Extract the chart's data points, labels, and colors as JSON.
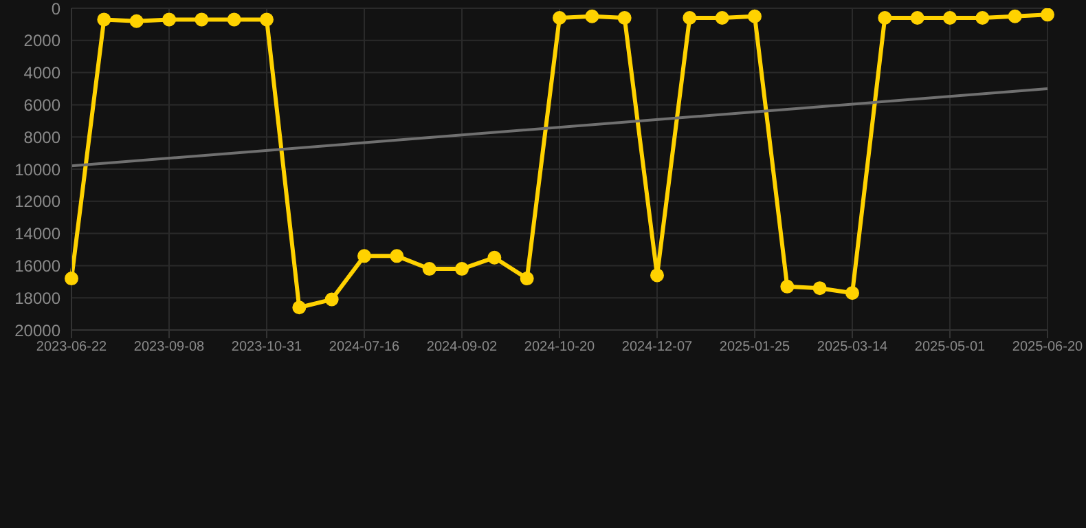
{
  "chart_data": {
    "type": "line",
    "categories": [
      "2023-06-22",
      null,
      null,
      "2023-09-08",
      null,
      null,
      "2023-10-31",
      null,
      null,
      "2024-07-16",
      null,
      null,
      "2024-09-02",
      null,
      null,
      "2024-10-20",
      null,
      null,
      "2024-12-07",
      null,
      null,
      "2025-01-25",
      null,
      null,
      "2025-03-14",
      null,
      null,
      "2025-05-01",
      null,
      null,
      "2025-06-20"
    ],
    "series": [
      {
        "color": "#ffd200",
        "values": [
          16800,
          700,
          800,
          700,
          700,
          700,
          700,
          18600,
          18100,
          15400,
          15400,
          16200,
          16200,
          15500,
          16800,
          600,
          500,
          600,
          16600,
          600,
          600,
          500,
          17300,
          17400,
          17700,
          600,
          600,
          600,
          600,
          500,
          400
        ]
      },
      {
        "type": "line",
        "color": "#707070",
        "marker": "none",
        "values": [
          9800,
          null,
          null,
          null,
          null,
          null,
          null,
          null,
          null,
          null,
          null,
          null,
          null,
          null,
          null,
          null,
          null,
          null,
          null,
          null,
          null,
          null,
          null,
          null,
          null,
          null,
          null,
          null,
          null,
          null,
          5000
        ]
      }
    ],
    "ylim": [
      20000,
      0
    ],
    "yticks": [
      0,
      2000,
      4000,
      6000,
      8000,
      10000,
      12000,
      14000,
      16000,
      18000,
      20000
    ],
    "grid": true,
    "marker": "circle",
    "line_style": "solid"
  }
}
